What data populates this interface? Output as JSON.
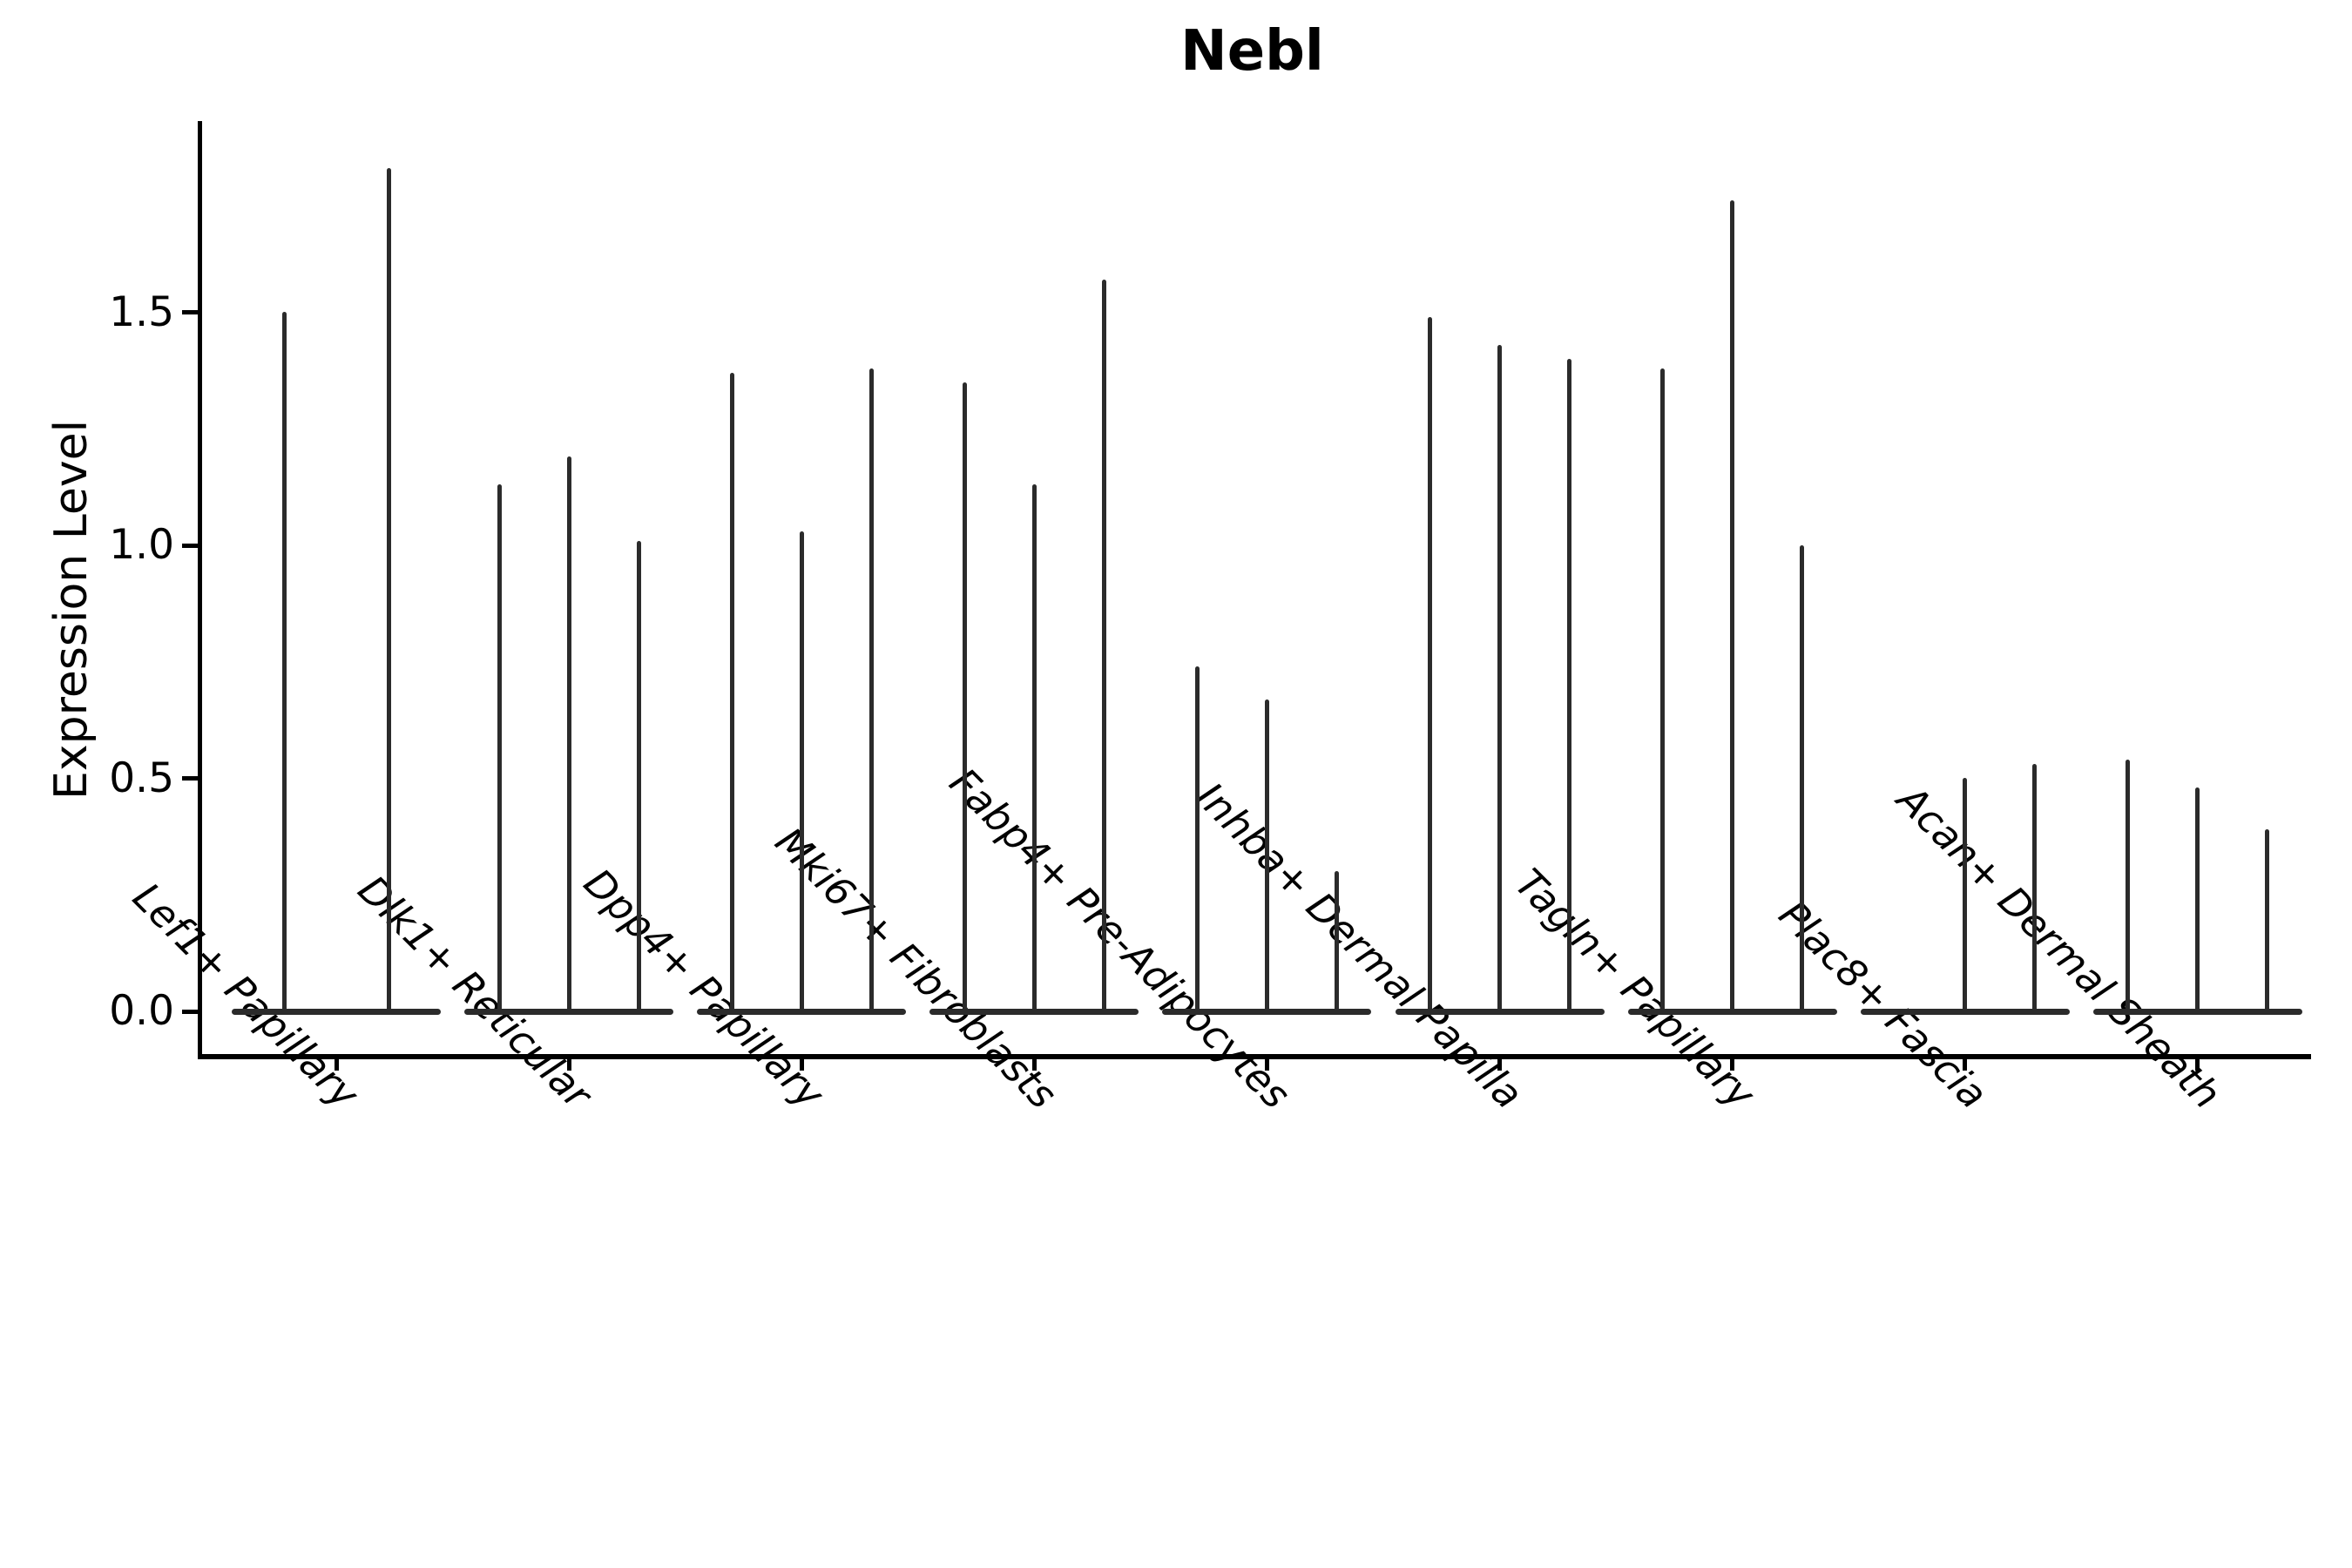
{
  "figure": {
    "title": "Nebl"
  },
  "chart_data": {
    "type": "violin",
    "title": "Nebl",
    "xlabel": "",
    "ylabel": "Expression Level",
    "ytick_labels": [
      "0.0",
      "0.5",
      "1.0",
      "1.5"
    ],
    "ytick_values": [
      0.0,
      0.5,
      1.0,
      1.5
    ],
    "ylim": [
      -0.09,
      1.9
    ],
    "grid": false,
    "legend_position": "none",
    "categories": [
      "Lef1+ Papillary",
      "Dlk1+ Reticular",
      "Dpp4+ Papillary",
      "Mki67+ Fibroblasts",
      "Fabp4+ Pre-Adipocytes",
      "Inhba+ Dermal Papilla",
      "Tagln+ Papillary",
      "Plac8+ Fascia",
      "Acan+ Dermal Sheath"
    ],
    "groups": [
      {
        "category": "Lef1+ Papillary",
        "violin_max_expression": [
          1.5,
          1.81
        ]
      },
      {
        "category": "Dlk1+ Reticular",
        "violin_max_expression": [
          1.13,
          1.19,
          1.01
        ]
      },
      {
        "category": "Dpp4+ Papillary",
        "violin_max_expression": [
          1.37,
          1.03,
          1.38
        ]
      },
      {
        "category": "Mki67+ Fibroblasts",
        "violin_max_expression": [
          1.35,
          1.13,
          1.57
        ]
      },
      {
        "category": "Fabp4+ Pre-Adipocytes",
        "violin_max_expression": [
          0.74,
          0.67,
          0.3
        ]
      },
      {
        "category": "Inhba+ Dermal Papilla",
        "violin_max_expression": [
          1.49,
          1.43,
          1.4
        ]
      },
      {
        "category": "Tagln+ Papillary",
        "violin_max_expression": [
          1.38,
          1.74,
          1.0
        ]
      },
      {
        "category": "Plac8+ Fascia",
        "violin_max_expression": [
          0.0,
          0.5,
          0.53
        ]
      },
      {
        "category": "Acan+ Dermal Sheath",
        "violin_max_expression": [
          0.54,
          0.48,
          0.39
        ]
      }
    ],
    "violin_color": "#2b2b2b"
  }
}
